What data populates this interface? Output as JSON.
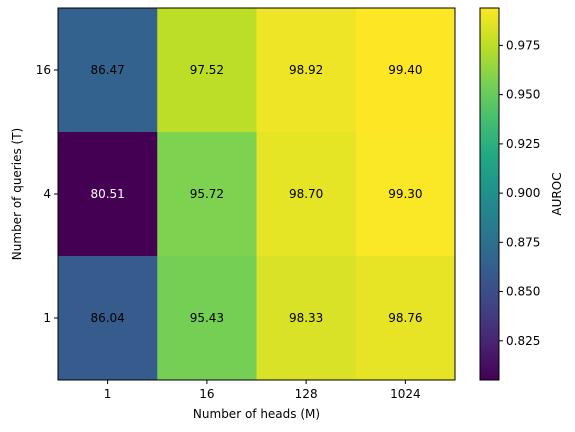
{
  "chart_data": {
    "type": "heatmap",
    "title": "",
    "xlabel": "Number of heads (M)",
    "ylabel": "Number of queries (T)",
    "x_categories": [
      "1",
      "16",
      "128",
      "1024"
    ],
    "y_categories": [
      "16",
      "4",
      "1"
    ],
    "values": [
      [
        86.47,
        97.52,
        98.92,
        99.4
      ],
      [
        80.51,
        95.72,
        98.7,
        99.3
      ],
      [
        86.04,
        95.43,
        98.33,
        98.76
      ]
    ],
    "value_labels": [
      [
        "86.47",
        "97.52",
        "98.92",
        "99.40"
      ],
      [
        "80.51",
        "95.72",
        "98.70",
        "99.30"
      ],
      [
        "86.04",
        "95.43",
        "98.33",
        "98.76"
      ]
    ],
    "colormap": "viridis",
    "colorbar": {
      "label": "AUROC",
      "range": [
        0.8051,
        0.994
      ],
      "ticks": [
        "0.825",
        "0.850",
        "0.875",
        "0.900",
        "0.925",
        "0.950",
        "0.975"
      ]
    }
  }
}
